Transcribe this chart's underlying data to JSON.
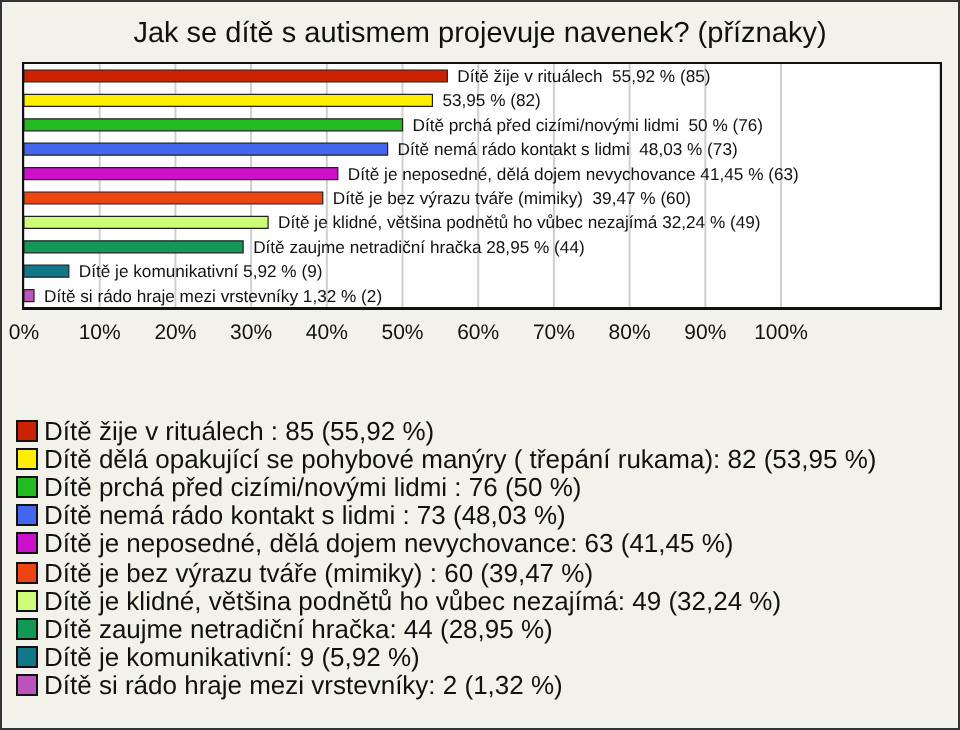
{
  "chart_data": {
    "type": "bar",
    "orientation": "horizontal",
    "title": "Jak se dítě s autismem projevuje navenek? (příznaky)",
    "categories": [
      null,
      null,
      null,
      null,
      null,
      null,
      null,
      null,
      null,
      null
    ],
    "values": [
      55.92,
      53.95,
      50,
      48.03,
      41.45,
      39.47,
      32.24,
      28.95,
      5.92,
      1.32
    ],
    "colors": [
      "#cc2200",
      "#ffee00",
      "#22bb22",
      "#4466ee",
      "#cc11cc",
      "#ee4411",
      "#ccff77",
      "#119955",
      "#117788",
      "#bb55bb"
    ],
    "value_labels": [
      "Dítě žije v rituálech  55,92 % (85)",
      "53,95 % (82)",
      "Dítě prchá před cizími/novými lidmi  50 % (76)",
      "Dítě nemá rádo kontakt s lidmi  48,03 % (73)",
      "Dítě je neposedné, dělá dojem nevychovance 41,45 % (63)",
      "Dítě je bez výrazu tváře (mimiky)  39,47 % (60)",
      "Dítě je klidné, většina podnětů ho vůbec nezajímá 32,24 % (49)",
      "Dítě zaujme netradiční hračka 28,95 % (44)",
      "Dítě je komunikativní 5,92 % (9)",
      "Dítě si rádo hraje mezi vrstevníky 1,32 % (2)"
    ],
    "annotations": [
      "Dítě žije v rituálech : 85 (55,92 %)",
      "Dítě dělá opakující se pohybové manýry ( třepání rukama): 82 (53,95 %)",
      "Dítě prchá před cizími/novými lidmi : 76 (50 %)",
      "Dítě nemá rádo kontakt s lidmi : 73 (48,03 %)",
      "Dítě je neposedné, dělá dojem nevychovance: 63 (41,45 %)",
      "Dítě je bez výrazu tváře (mimiky) : 60 (39,47 %)",
      "Dítě je klidné, většina podnětů ho vůbec nezajímá: 49 (32,24 %)",
      "Dítě zaujme netradiční hračka: 44 (28,95 %)",
      "Dítě je komunikativní: 9 (5,92 %)",
      "Dítě si rádo hraje mezi vrstevníky: 2 (1,32 %)"
    ],
    "xlim": [
      0,
      121
    ],
    "xticks": [
      {
        "value": 0,
        "label": "0%"
      },
      {
        "value": 10,
        "label": "10%"
      },
      {
        "value": 20,
        "label": "20%"
      },
      {
        "value": 30,
        "label": "30%"
      },
      {
        "value": 40,
        "label": "40%"
      },
      {
        "value": 50,
        "label": "50%"
      },
      {
        "value": 60,
        "label": "60%"
      },
      {
        "value": 70,
        "label": "70%"
      },
      {
        "value": 80,
        "label": "80%"
      },
      {
        "value": 90,
        "label": "90%"
      },
      {
        "value": 100,
        "label": "100%"
      }
    ],
    "grid": "x",
    "tick_labels": "x"
  }
}
